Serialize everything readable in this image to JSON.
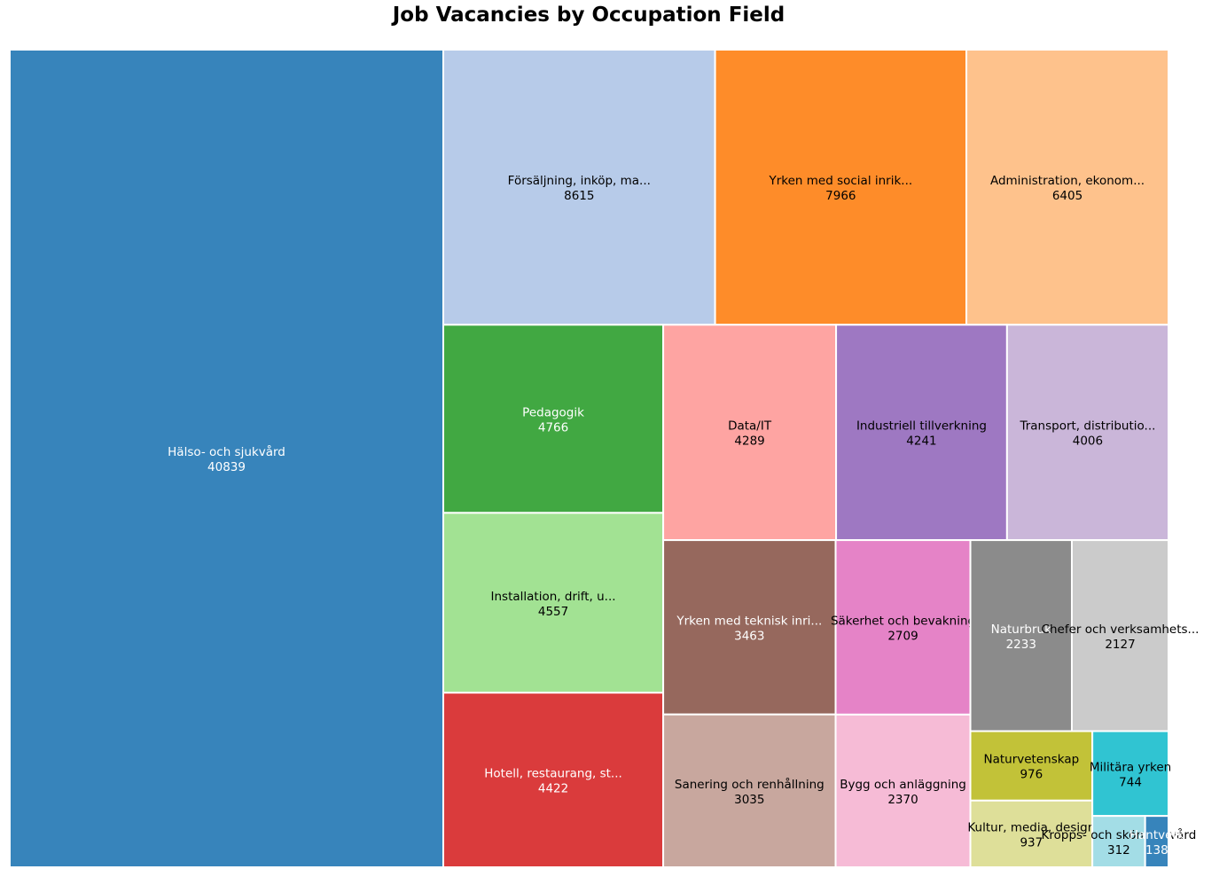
{
  "chart_data": {
    "type": "treemap",
    "title": "Job Vacancies by Occupation Field",
    "items": [
      {
        "label": "Hälso- och sjukvård",
        "value": 40839,
        "color": "#3784bb",
        "text_color": "#ffffff"
      },
      {
        "label": "Försäljning, inköp, ma...",
        "value": 8615,
        "color": "#b7cbe9",
        "text_color": "#000000"
      },
      {
        "label": "Yrken med social inrik...",
        "value": 7966,
        "color": "#fe8c29",
        "text_color": "#000000"
      },
      {
        "label": "Administration, ekonom...",
        "value": 6405,
        "color": "#fec28c",
        "text_color": "#000000"
      },
      {
        "label": "Pedagogik",
        "value": 4766,
        "color": "#41a842",
        "text_color": "#ffffff"
      },
      {
        "label": "Installation, drift, u...",
        "value": 4557,
        "color": "#a2e293",
        "text_color": "#000000"
      },
      {
        "label": "Hotell, restaurang, st...",
        "value": 4422,
        "color": "#da3b3c",
        "text_color": "#ffffff"
      },
      {
        "label": "Data/IT",
        "value": 4289,
        "color": "#fea4a2",
        "text_color": "#000000"
      },
      {
        "label": "Industriell tillverkning",
        "value": 4241,
        "color": "#9e78c2",
        "text_color": "#000000"
      },
      {
        "label": "Transport, distributio...",
        "value": 4006,
        "color": "#cab6d9",
        "text_color": "#000000"
      },
      {
        "label": "Yrken med teknisk inri...",
        "value": 3463,
        "color": "#96685d",
        "text_color": "#ffffff"
      },
      {
        "label": "Sanering och renhållning",
        "value": 3035,
        "color": "#c8a79e",
        "text_color": "#000000"
      },
      {
        "label": "Säkerhet och bevakning",
        "value": 2709,
        "color": "#e583c7",
        "text_color": "#000000"
      },
      {
        "label": "Bygg och anläggning",
        "value": 2370,
        "color": "#f6bbd6",
        "text_color": "#000000"
      },
      {
        "label": "Naturbruk",
        "value": 2233,
        "color": "#8b8b8b",
        "text_color": "#ffffff"
      },
      {
        "label": "Chefer och verksamhets...",
        "value": 2127,
        "color": "#cbcbcb",
        "text_color": "#000000"
      },
      {
        "label": "Naturvetenskap",
        "value": 976,
        "color": "#c2c238",
        "text_color": "#000000"
      },
      {
        "label": "Kultur, media, design",
        "value": 937,
        "color": "#dedf99",
        "text_color": "#000000"
      },
      {
        "label": "Militära yrken",
        "value": 744,
        "color": "#30c4d2",
        "text_color": "#000000"
      },
      {
        "label": "Kropps- och skönhetsvård",
        "value": 312,
        "color": "#a3dde6",
        "text_color": "#000000"
      },
      {
        "label": "Hantverk",
        "value": 138,
        "color": "#3784bb",
        "text_color": "#ffffff"
      }
    ]
  }
}
